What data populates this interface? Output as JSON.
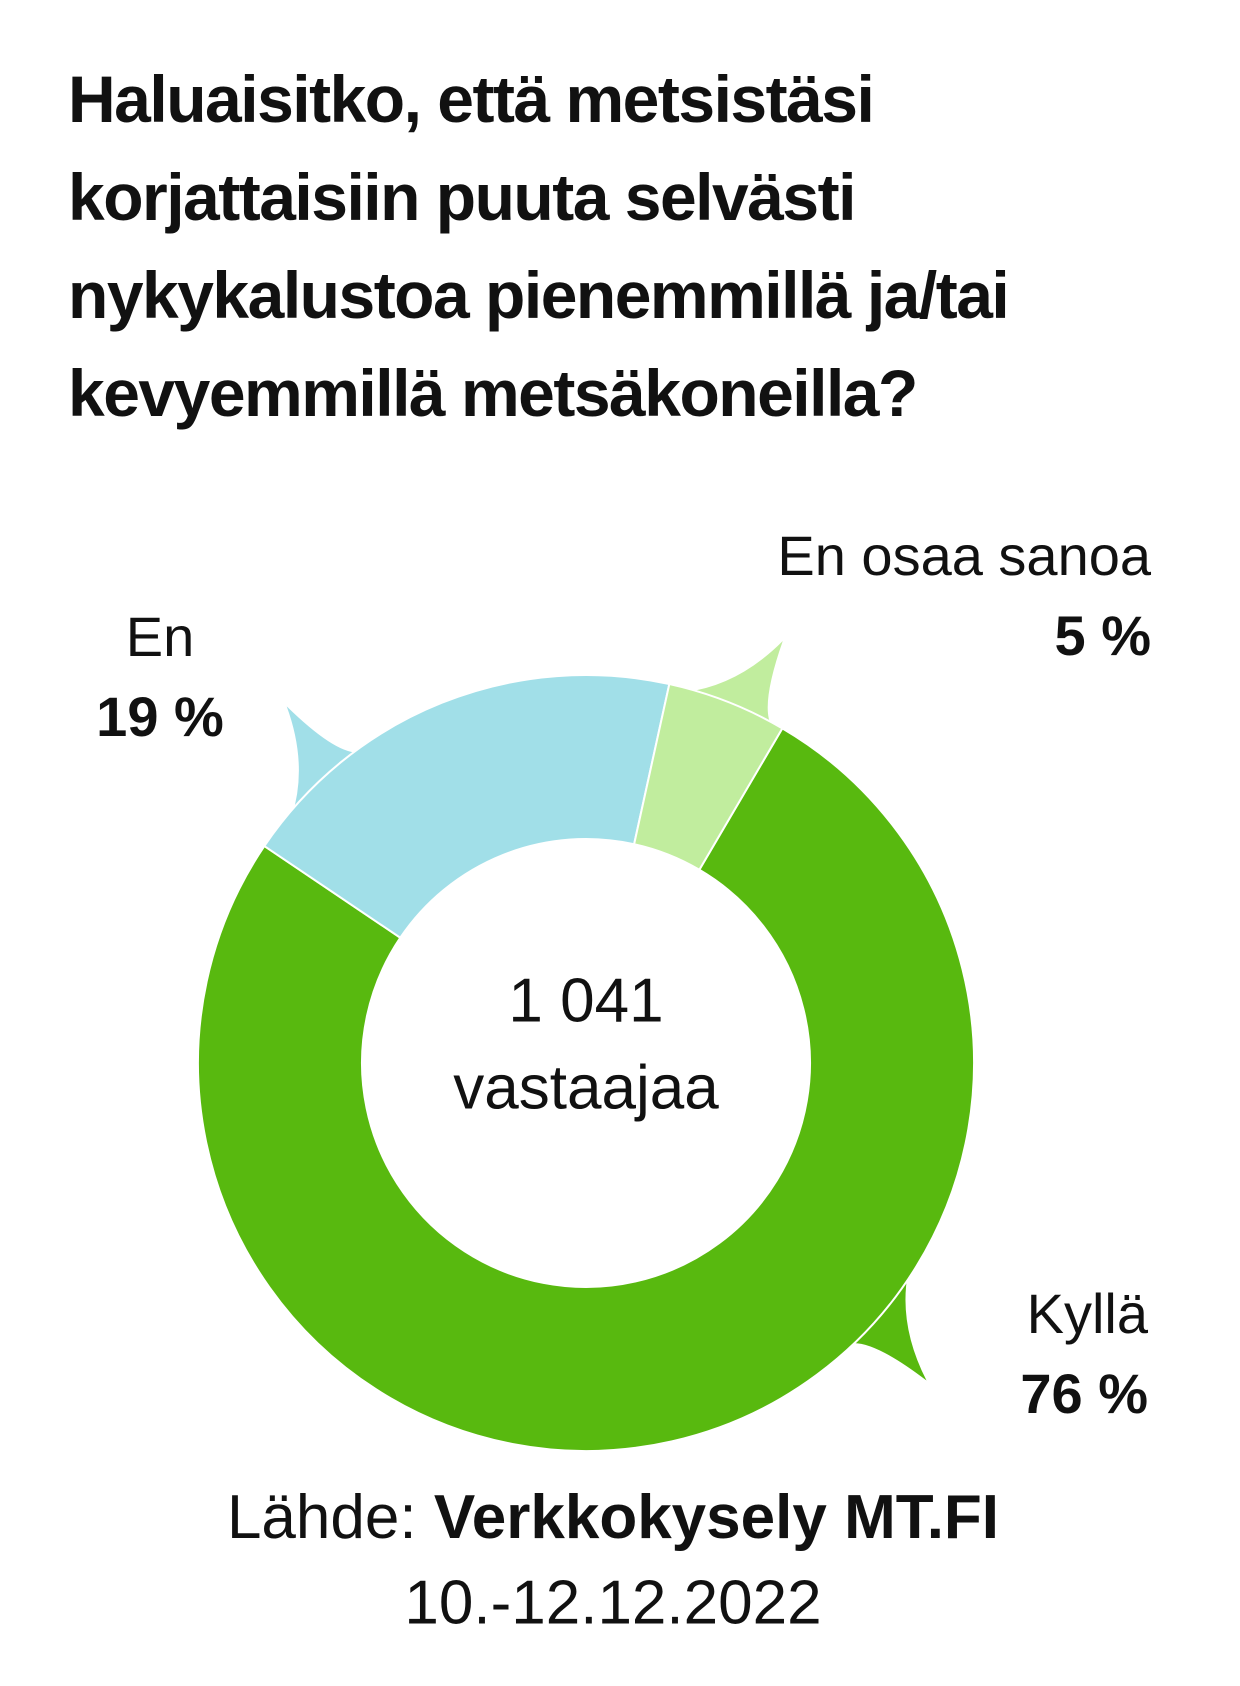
{
  "chart_data": {
    "type": "donut",
    "title": "Haluaisitko, että metsistäsi korjattaisiin puuta selvästi nykykalustoa pienemmillä ja/tai kevyemmillä metsäkoneilla?",
    "categories": [
      "Kyllä",
      "En",
      "En osaa sanoa"
    ],
    "values": [
      76,
      19,
      5
    ],
    "value_labels": [
      "76 %",
      "19 %",
      "5 %"
    ],
    "colors": [
      "#58b90f",
      "#a1dfe8",
      "#c1ed9e"
    ],
    "center_label": [
      "1 041",
      "vastaajaa"
    ],
    "source_label": "Lähde:",
    "source": "Verkkokysely MT.FI",
    "date": "10.-12.12.2022"
  }
}
